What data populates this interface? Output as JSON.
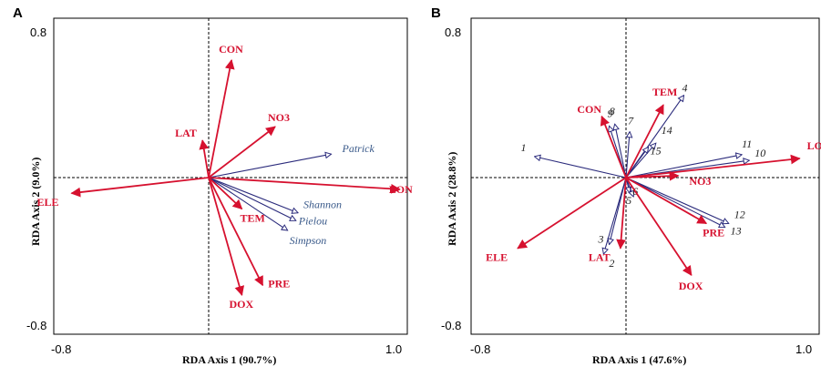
{
  "colors": {
    "env": "#d6112f",
    "species": "#2b2b7c",
    "species_label_a": "#3a5a8a",
    "species_label_b": "#222222",
    "axis": "#000000"
  },
  "chart_data": [
    {
      "type": "scatter",
      "panel": "A",
      "xlabel": "RDA   Axis 1 (90.7%)",
      "ylabel": "RDA   Axis 2 (9.0%)",
      "xlim": [
        -0.8,
        1.0
      ],
      "ylim": [
        -0.8,
        0.8
      ],
      "x_ticks": [
        "-0.8",
        "1.0"
      ],
      "y_ticks": [
        "0.8",
        "-0.8"
      ],
      "env_vectors": [
        {
          "name": "CON",
          "x": 0.11,
          "y": 0.6
        },
        {
          "name": "NO3",
          "x": 0.32,
          "y": 0.26
        },
        {
          "name": "LAT",
          "x": -0.03,
          "y": 0.19
        },
        {
          "name": "ELE",
          "x": -0.66,
          "y": -0.08
        },
        {
          "name": "LON",
          "x": 0.92,
          "y": -0.06
        },
        {
          "name": "TEM",
          "x": 0.16,
          "y": -0.16
        },
        {
          "name": "PRE",
          "x": 0.26,
          "y": -0.55
        },
        {
          "name": "DOX",
          "x": 0.16,
          "y": -0.6
        }
      ],
      "species_vectors": [
        {
          "name": "Patrick",
          "x": 0.59,
          "y": 0.12
        },
        {
          "name": "Shannon",
          "x": 0.43,
          "y": -0.18
        },
        {
          "name": "Pielou",
          "x": 0.42,
          "y": -0.22
        },
        {
          "name": "Simpson",
          "x": 0.38,
          "y": -0.27
        }
      ]
    },
    {
      "type": "scatter",
      "panel": "B",
      "xlabel": "RDA   Axis 1 (47.6%)",
      "ylabel": "RDA   Axis 2 (28.8%)",
      "xlim": [
        -0.8,
        1.0
      ],
      "ylim": [
        -0.8,
        0.8
      ],
      "x_ticks": [
        "-0.8",
        "1.0"
      ],
      "y_ticks": [
        "0.8",
        "-0.8"
      ],
      "env_vectors": [
        {
          "name": "TEM",
          "x": 0.2,
          "y": 0.38
        },
        {
          "name": "CON",
          "x": -0.13,
          "y": 0.32
        },
        {
          "name": "LON",
          "x": 0.93,
          "y": 0.1
        },
        {
          "name": "NO3",
          "x": 0.28,
          "y": 0.01
        },
        {
          "name": "PRE",
          "x": 0.43,
          "y": -0.24
        },
        {
          "name": "DOX",
          "x": 0.35,
          "y": -0.51
        },
        {
          "name": "LAT",
          "x": -0.03,
          "y": -0.37
        },
        {
          "name": "ELE",
          "x": -0.58,
          "y": -0.37
        }
      ],
      "species_vectors": [
        {
          "name": "1",
          "x": -0.49,
          "y": 0.11
        },
        {
          "name": "2",
          "x": -0.12,
          "y": -0.4
        },
        {
          "name": "3",
          "x": -0.09,
          "y": -0.35
        },
        {
          "name": "4",
          "x": 0.31,
          "y": 0.43
        },
        {
          "name": "5",
          "x": 0.02,
          "y": -0.08
        },
        {
          "name": "6",
          "x": 0.04,
          "y": -0.1
        },
        {
          "name": "7",
          "x": 0.02,
          "y": 0.24
        },
        {
          "name": "8",
          "x": -0.06,
          "y": 0.28
        },
        {
          "name": "9",
          "x": -0.09,
          "y": 0.27
        },
        {
          "name": "10",
          "x": 0.66,
          "y": 0.09
        },
        {
          "name": "11",
          "x": 0.62,
          "y": 0.12
        },
        {
          "name": "12",
          "x": 0.55,
          "y": -0.24
        },
        {
          "name": "13",
          "x": 0.53,
          "y": -0.26
        },
        {
          "name": "14",
          "x": 0.16,
          "y": 0.18
        },
        {
          "name": "15",
          "x": 0.12,
          "y": 0.16
        }
      ]
    }
  ]
}
